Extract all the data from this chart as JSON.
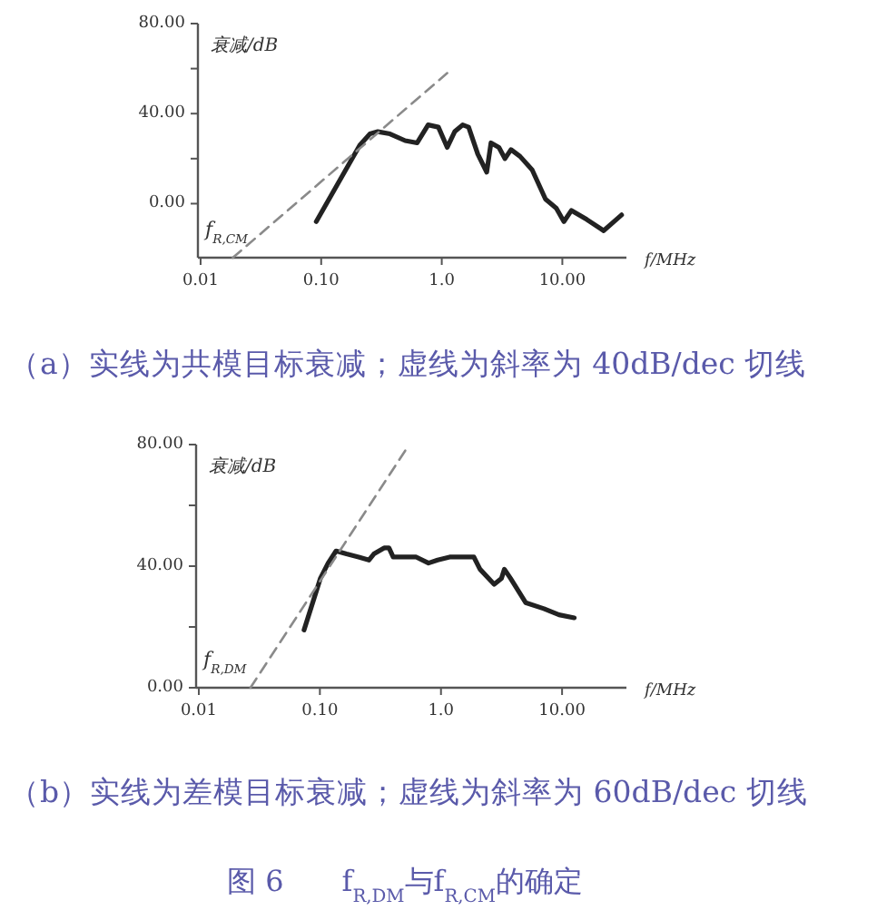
{
  "chart_data": [
    {
      "type": "line",
      "title": "（a）实线为共模目标衰减；虚线为斜率为 40dB/dec 切线",
      "xlabel": "f/MHz",
      "ylabel": "衰减/dB",
      "log": "x",
      "xlim": [
        0.0095,
        34
      ],
      "xticks": [
        {
          "value": 0.01,
          "label": "0.01"
        },
        {
          "value": 0.1,
          "label": "0.10"
        },
        {
          "value": 1,
          "label": "1.0"
        },
        {
          "value": 10,
          "label": "10.00"
        }
      ],
      "ylim": [
        -24,
        80
      ],
      "yticks": [
        {
          "value": 80,
          "label": "80.00"
        },
        {
          "value": 60,
          "label": null
        },
        {
          "value": 40,
          "label": "40.00"
        },
        {
          "value": 20,
          "label": null
        },
        {
          "value": 0,
          "label": "0.00"
        }
      ],
      "series": [
        {
          "color": "#222222",
          "line_style": "solid",
          "x": [
            0.091,
            0.209,
            0.254,
            0.295,
            0.372,
            0.497,
            0.625,
            0.771,
            0.938,
            1.11,
            1.28,
            1.49,
            1.67,
            1.99,
            2.36,
            2.56,
            2.98,
            3.34,
            3.75,
            4.46,
            5.62,
            7.25,
            8.91,
            10.3,
            11.9,
            15.9,
            22.0,
            31.0
          ],
          "values": [
            -8,
            26,
            31,
            32,
            31,
            28,
            27,
            35,
            34,
            25,
            32,
            35,
            34,
            22,
            14,
            27,
            25,
            20,
            24,
            21,
            15,
            2,
            -2,
            -8,
            -3,
            -7,
            -12,
            -5
          ]
        },
        {
          "color": "#8a8a8a",
          "line_style": "dashed",
          "x": [
            0.0185,
            1.11
          ],
          "values": [
            -24,
            58
          ]
        }
      ],
      "annotations": [
        "f$_{R,CM}$"
      ]
    },
    {
      "type": "line",
      "title": "（b）实线为差模目标衰减；虚线为斜率为 60dB/dec 切线",
      "xlabel": "f/MHz",
      "ylabel": "衰减/dB",
      "log": "x",
      "xlim": [
        0.0095,
        34
      ],
      "xticks": [
        {
          "value": 0.01,
          "label": "0.01"
        },
        {
          "value": 0.1,
          "label": "0.10"
        },
        {
          "value": 1,
          "label": "1.0"
        },
        {
          "value": 10,
          "label": "10.00"
        }
      ],
      "ylim": [
        0,
        80
      ],
      "yticks": [
        {
          "value": 80,
          "label": "80.00"
        },
        {
          "value": 60,
          "label": null
        },
        {
          "value": 40,
          "label": "40.00"
        },
        {
          "value": 20,
          "label": null
        },
        {
          "value": 0,
          "label": "0.00"
        }
      ],
      "series": [
        {
          "color": "#222222",
          "line_style": "solid",
          "x": [
            0.074,
            0.101,
            0.117,
            0.136,
            0.166,
            0.209,
            0.254,
            0.279,
            0.339,
            0.372,
            0.403,
            0.497,
            0.625,
            0.789,
            0.938,
            1.18,
            1.87,
            2.1,
            2.75,
            3.16,
            3.34,
            3.75,
            5.0,
            7.08,
            9.44,
            12.6
          ],
          "values": [
            19,
            36,
            41,
            45,
            44,
            43,
            42,
            44,
            46,
            46,
            43,
            43,
            43,
            41,
            42,
            43,
            43,
            39,
            34,
            36,
            39,
            36,
            28,
            26,
            24,
            23
          ]
        },
        {
          "color": "#8a8a8a",
          "line_style": "dashed",
          "x": [
            0.0267,
            0.526
          ],
          "values": [
            0,
            79
          ]
        }
      ],
      "annotations": [
        "f$_{R,DM}$",
        "图 6　　f$_{R,DM}$与f$_{R,CM}$的确定"
      ]
    }
  ]
}
